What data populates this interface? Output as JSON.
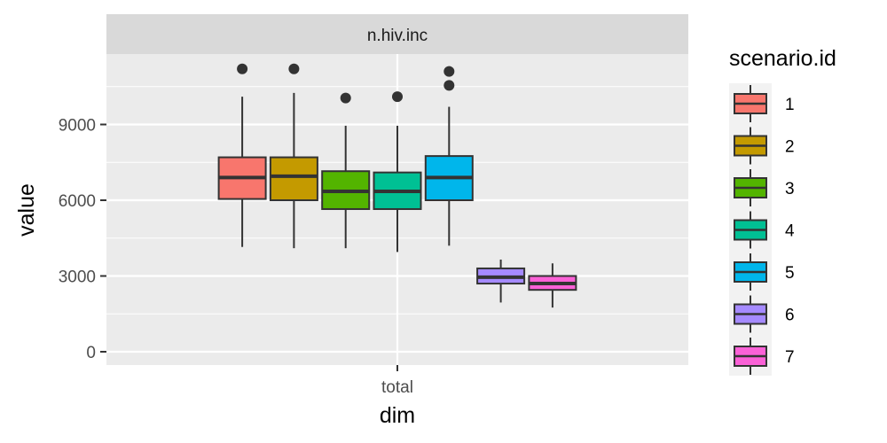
{
  "chart_data": {
    "type": "box",
    "facet_label": "n.hiv.inc",
    "xlabel": "dim",
    "ylabel": "value",
    "x_categories": [
      "total"
    ],
    "yticks": [
      0,
      3000,
      6000,
      9000
    ],
    "ylim": [
      -500,
      12500
    ],
    "legend": {
      "title": "scenario.id",
      "position": "right"
    },
    "series": [
      {
        "name": "1",
        "color": "#F8766D",
        "whisker_low": 4150,
        "q1": 6050,
        "median": 6900,
        "q3": 7700,
        "whisker_high": 10100,
        "outliers": [
          11200
        ]
      },
      {
        "name": "2",
        "color": "#C49A00",
        "whisker_low": 4100,
        "q1": 6000,
        "median": 6950,
        "q3": 7700,
        "whisker_high": 10250,
        "outliers": [
          11200
        ]
      },
      {
        "name": "3",
        "color": "#53B400",
        "whisker_low": 4100,
        "q1": 5650,
        "median": 6350,
        "q3": 7150,
        "whisker_high": 8950,
        "outliers": [
          10050
        ]
      },
      {
        "name": "4",
        "color": "#00C094",
        "whisker_low": 3950,
        "q1": 5650,
        "median": 6350,
        "q3": 7100,
        "whisker_high": 8950,
        "outliers": [
          10100
        ]
      },
      {
        "name": "5",
        "color": "#00B6EB",
        "whisker_low": 4200,
        "q1": 6000,
        "median": 6900,
        "q3": 7750,
        "whisker_high": 9700,
        "outliers": [
          10550,
          11100
        ]
      },
      {
        "name": "6",
        "color": "#A58AFF",
        "whisker_low": 1950,
        "q1": 2700,
        "median": 2950,
        "q3": 3300,
        "whisker_high": 3650,
        "outliers": []
      },
      {
        "name": "7",
        "color": "#FB61D7",
        "whisker_low": 1750,
        "q1": 2450,
        "median": 2700,
        "q3": 3000,
        "whisker_high": 3500,
        "outliers": []
      }
    ]
  }
}
